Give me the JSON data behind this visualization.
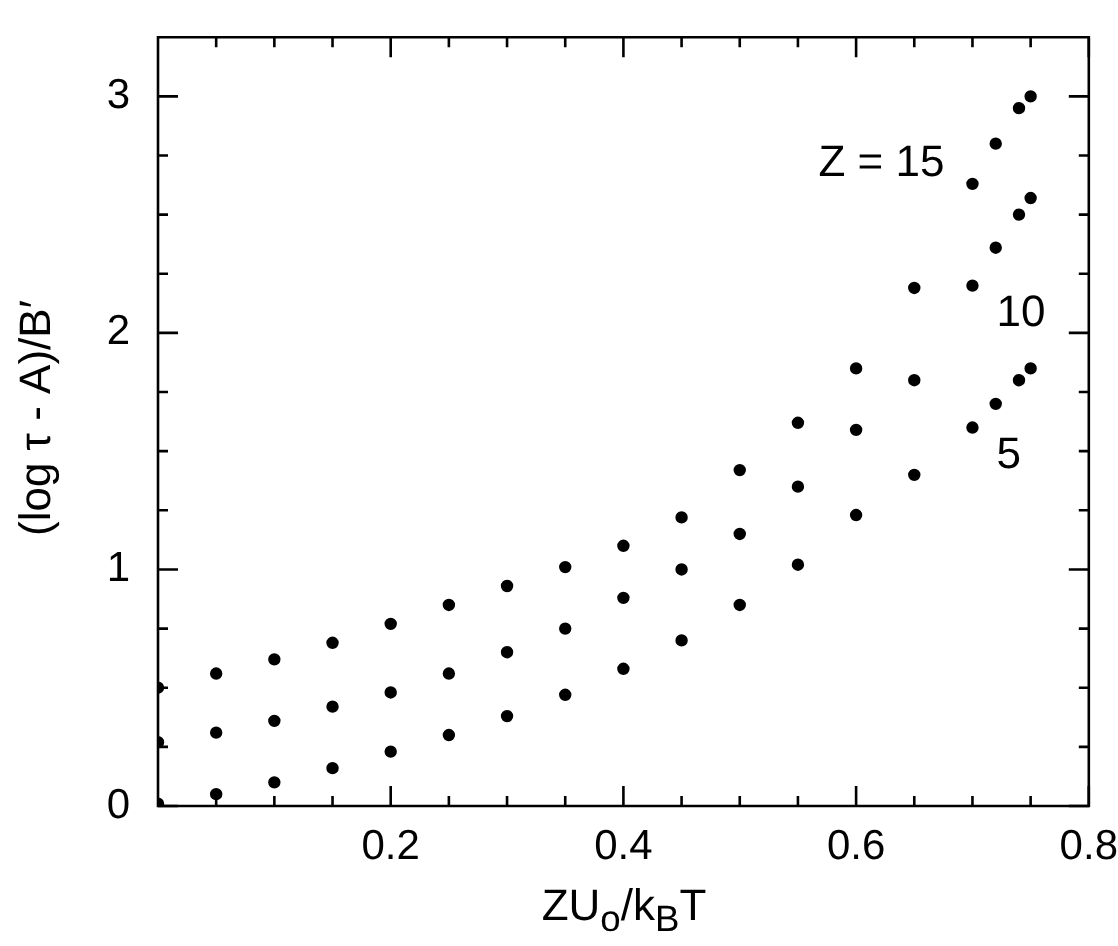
{
  "chart_data": {
    "type": "scatter",
    "xlabel": "ZU$_{o}$/k$_{B}$T",
    "ylabel": "(log τ - A)/B′",
    "x": [
      0,
      0.05,
      0.1,
      0.15,
      0.2,
      0.25,
      0.3,
      0.35,
      0.4,
      0.45,
      0.5,
      0.55,
      0.6,
      0.65,
      0.7,
      0.72,
      0.74,
      0.75
    ],
    "series": [
      {
        "name": "Z = 15",
        "color": "#000000",
        "values": [
          0.5,
          0.56,
          0.62,
          0.69,
          0.77,
          0.85,
          0.93,
          1.01,
          1.1,
          1.22,
          1.42,
          1.62,
          1.85,
          2.19,
          2.63,
          2.8,
          2.95,
          3.0
        ]
      },
      {
        "name": "10",
        "color": "#000000",
        "values": [
          0.27,
          0.31,
          0.36,
          0.42,
          0.48,
          0.56,
          0.65,
          0.75,
          0.88,
          1.0,
          1.15,
          1.35,
          1.59,
          1.8,
          2.2,
          2.36,
          2.5,
          2.57
        ]
      },
      {
        "name": "5",
        "color": "#000000",
        "values": [
          0.01,
          0.05,
          0.1,
          0.16,
          0.23,
          0.3,
          0.38,
          0.47,
          0.58,
          0.7,
          0.85,
          1.02,
          1.23,
          1.4,
          1.6,
          1.7,
          1.8,
          1.85
        ]
      }
    ],
    "xlim": [
      0,
      0.8
    ],
    "ylim": [
      0,
      3.25
    ],
    "xticks": [
      {
        "value": 0.05,
        "label": null
      },
      {
        "value": 0.1,
        "label": null
      },
      {
        "value": 0.15,
        "label": null
      },
      0.2,
      {
        "value": 0.25,
        "label": null
      },
      {
        "value": 0.3,
        "label": null
      },
      {
        "value": 0.35,
        "label": null
      },
      0.4,
      {
        "value": 0.45,
        "label": null
      },
      {
        "value": 0.5,
        "label": null
      },
      {
        "value": 0.55,
        "label": null
      },
      0.6,
      {
        "value": 0.65,
        "label": null
      },
      {
        "value": 0.7,
        "label": null
      },
      {
        "value": 0.75,
        "label": null
      },
      0.8
    ],
    "yticks": [
      0,
      {
        "value": 0.25,
        "label": null
      },
      {
        "value": 0.5,
        "label": null
      },
      {
        "value": 0.75,
        "label": null
      },
      1,
      {
        "value": 1.25,
        "label": null
      },
      {
        "value": 1.5,
        "label": null
      },
      {
        "value": 1.75,
        "label": null
      },
      2,
      {
        "value": 2.25,
        "label": null
      },
      {
        "value": 2.5,
        "label": null
      },
      {
        "value": 2.75,
        "label": null
      },
      3
    ],
    "marker": "circle",
    "legend": "right"
  }
}
